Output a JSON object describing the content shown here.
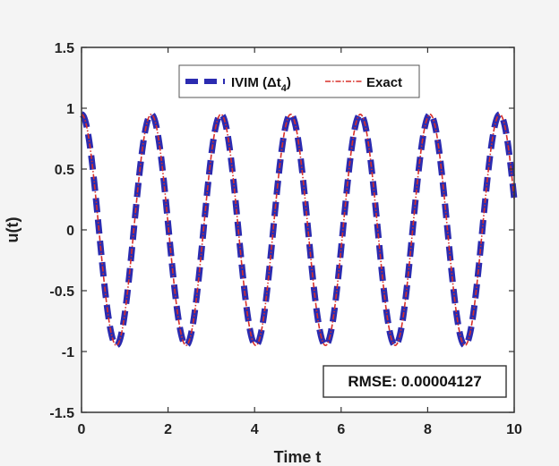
{
  "chart_data": {
    "type": "line",
    "xlabel": "Time t",
    "ylabel": "u(t)",
    "xlim": [
      0,
      10
    ],
    "ylim": [
      -1.5,
      1.5
    ],
    "xticks": [
      0,
      2,
      4,
      6,
      8,
      10
    ],
    "xtick_labels": [
      "0",
      "2",
      "4",
      "6",
      "8",
      "10"
    ],
    "yticks": [
      -1.5,
      -1,
      -0.5,
      0,
      0.5,
      1,
      1.5
    ],
    "ytick_labels": [
      "-1.5",
      "-1",
      "-0.5",
      "0",
      "0.5",
      "1",
      "1.5"
    ],
    "grid": false,
    "legend_position": "top-center",
    "series": [
      {
        "name": "IVIM (Δt4)",
        "label_main": "IVIM (Δt",
        "label_sub": "4",
        "label_close": ")",
        "color": "#2b2bb0",
        "style": "dashed-thick",
        "function": "0.95*cos(3.9*t)",
        "x": [
          0,
          0.25,
          0.5,
          0.75,
          1,
          1.25,
          1.5,
          1.75,
          2,
          2.25,
          2.5,
          2.75,
          3,
          3.25,
          3.5,
          3.75,
          4,
          4.25,
          4.5,
          4.75,
          5,
          5.25,
          5.5,
          5.75,
          6,
          6.25,
          6.5,
          6.75,
          7,
          7.25,
          7.5,
          7.75,
          8,
          8.25,
          8.5,
          8.75,
          9,
          9.25,
          9.5,
          9.75,
          10
        ],
        "y": [
          0.95,
          0.53,
          -0.35,
          -0.92,
          -0.69,
          0.14,
          0.84,
          0.83,
          0.07,
          -0.72,
          -0.9,
          -0.32,
          0.56,
          0.95,
          0.5,
          -0.38,
          -0.93,
          -0.67,
          0.17,
          0.86,
          0.82,
          0.04,
          -0.74,
          -0.89,
          -0.29,
          0.58,
          0.94,
          0.47,
          -0.41,
          -0.93,
          -0.64,
          0.2,
          0.87,
          0.8,
          0.01,
          -0.76,
          -0.88,
          -0.26,
          0.61,
          0.94,
          0.45
        ]
      },
      {
        "name": "Exact",
        "color": "#d8302a",
        "style": "dashdot-thin",
        "function": "0.95*cos(3.9*t)",
        "x": [
          0,
          0.25,
          0.5,
          0.75,
          1,
          1.25,
          1.5,
          1.75,
          2,
          2.25,
          2.5,
          2.75,
          3,
          3.25,
          3.5,
          3.75,
          4,
          4.25,
          4.5,
          4.75,
          5,
          5.25,
          5.5,
          5.75,
          6,
          6.25,
          6.5,
          6.75,
          7,
          7.25,
          7.5,
          7.75,
          8,
          8.25,
          8.5,
          8.75,
          9,
          9.25,
          9.5,
          9.75,
          10
        ],
        "y": [
          0.95,
          0.53,
          -0.35,
          -0.92,
          -0.69,
          0.14,
          0.84,
          0.83,
          0.07,
          -0.72,
          -0.9,
          -0.32,
          0.56,
          0.95,
          0.5,
          -0.38,
          -0.93,
          -0.67,
          0.17,
          0.86,
          0.82,
          0.04,
          -0.74,
          -0.89,
          -0.29,
          0.58,
          0.94,
          0.47,
          -0.41,
          -0.93,
          -0.64,
          0.2,
          0.87,
          0.8,
          0.01,
          -0.76,
          -0.88,
          -0.26,
          0.61,
          0.94,
          0.45
        ]
      }
    ],
    "annotation": "RMSE: 0.00004127"
  }
}
